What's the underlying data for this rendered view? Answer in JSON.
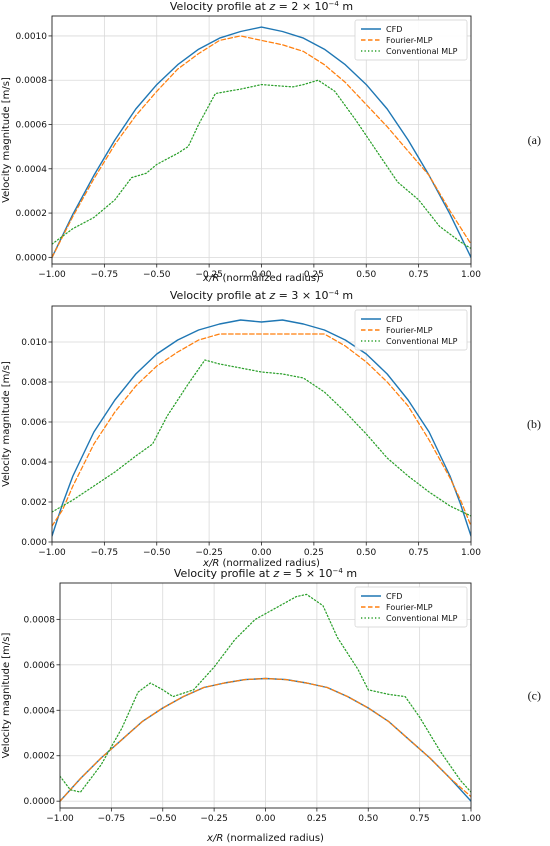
{
  "chart_data": [
    {
      "type": "line",
      "panel_id": "(a)",
      "title_prefix": "Velocity profile at ",
      "title_z": "z",
      "title_mid": " = 2 × 10",
      "title_exp": "−4",
      "title_unit": " m",
      "xlabel_italic": "x/R",
      "xlabel_rest": " (normalized radius)",
      "ylabel": "Velocity magnitude [m/s]",
      "xlim": [
        -1.0,
        1.0
      ],
      "ylim": [
        -3e-05,
        0.00109
      ],
      "x_ticks": [
        -1.0,
        -0.75,
        -0.5,
        -0.25,
        0.0,
        0.25,
        0.5,
        0.75,
        1.0
      ],
      "x_tick_labels": [
        "−1.00",
        "−0.75",
        "−0.50",
        "−0.25",
        "0.00",
        "0.25",
        "0.50",
        "0.75",
        "1.00"
      ],
      "y_ticks": [
        0.0,
        0.0002,
        0.0004,
        0.0006,
        0.0008,
        0.001
      ],
      "y_tick_labels": [
        "0.0000",
        "0.0002",
        "0.0004",
        "0.0006",
        "0.0008",
        "0.0010"
      ],
      "grid": true,
      "legend_position": "top-right",
      "series": [
        {
          "name": "CFD",
          "color": "#1f77b4",
          "style": "solid",
          "x": [
            -1.0,
            -0.9,
            -0.8,
            -0.7,
            -0.6,
            -0.5,
            -0.4,
            -0.3,
            -0.2,
            -0.1,
            0.0,
            0.1,
            0.2,
            0.3,
            0.4,
            0.5,
            0.6,
            0.7,
            0.8,
            0.9,
            1.0
          ],
          "y": [
            0.0,
            0.000195,
            0.00037,
            0.00053,
            0.00067,
            0.00078,
            0.00087,
            0.00094,
            0.00099,
            0.00102,
            0.00104,
            0.00102,
            0.00099,
            0.00094,
            0.00087,
            0.00078,
            0.00067,
            0.00053,
            0.00037,
            0.000195,
            0.0
          ]
        },
        {
          "name": "Fourier-MLP",
          "color": "#ff7f0e",
          "style": "dashed",
          "x": [
            -1.0,
            -0.9,
            -0.8,
            -0.7,
            -0.6,
            -0.5,
            -0.4,
            -0.3,
            -0.2,
            -0.1,
            0.0,
            0.1,
            0.2,
            0.3,
            0.4,
            0.5,
            0.6,
            0.7,
            0.8,
            0.9,
            1.0
          ],
          "y": [
            0.0,
            0.000185,
            0.000355,
            0.00051,
            0.00064,
            0.00075,
            0.00085,
            0.00092,
            0.00098,
            0.001,
            0.00098,
            0.00096,
            0.00093,
            0.00087,
            0.00079,
            0.00069,
            0.00059,
            0.00048,
            0.00037,
            0.00021,
            6e-05
          ]
        },
        {
          "name": "Conventional MLP",
          "color": "#2ca02c",
          "style": "dotted",
          "x": [
            -1.0,
            -0.9,
            -0.8,
            -0.7,
            -0.62,
            -0.55,
            -0.5,
            -0.4,
            -0.35,
            -0.3,
            -0.22,
            -0.1,
            0.0,
            0.15,
            0.2,
            0.27,
            0.35,
            0.45,
            0.55,
            0.65,
            0.75,
            0.85,
            0.95,
            1.0
          ],
          "y": [
            6e-05,
            0.00013,
            0.00018,
            0.00026,
            0.00036,
            0.00038,
            0.00042,
            0.00047,
            0.0005,
            0.0006,
            0.00074,
            0.00076,
            0.00078,
            0.00077,
            0.00078,
            0.0008,
            0.00075,
            0.00062,
            0.00048,
            0.00034,
            0.00026,
            0.00014,
            7e-05,
            4e-05
          ]
        }
      ]
    },
    {
      "type": "line",
      "panel_id": "(b)",
      "title_prefix": "Velocity profile at ",
      "title_z": "z",
      "title_mid": " = 3 × 10",
      "title_exp": "−4",
      "title_unit": " m",
      "xlabel_italic": "x/R",
      "xlabel_rest": " (normalized radius)",
      "ylabel": "Velocity magnitude [m/s]",
      "xlim": [
        -1.0,
        1.0
      ],
      "ylim": [
        0.0,
        0.0118
      ],
      "x_ticks": [
        -1.0,
        -0.75,
        -0.5,
        -0.25,
        0.0,
        0.25,
        0.5,
        0.75,
        1.0
      ],
      "x_tick_labels": [
        "−1.00",
        "−0.75",
        "−0.50",
        "−0.25",
        "0.00",
        "0.25",
        "0.50",
        "0.75",
        "1.00"
      ],
      "y_ticks": [
        0.0,
        0.002,
        0.004,
        0.006,
        0.008,
        0.01
      ],
      "y_tick_labels": [
        "0.000",
        "0.002",
        "0.004",
        "0.006",
        "0.008",
        "0.010"
      ],
      "grid": true,
      "legend_position": "top-right",
      "series": [
        {
          "name": "CFD",
          "color": "#1f77b4",
          "style": "solid",
          "x": [
            -1.0,
            -0.95,
            -0.9,
            -0.8,
            -0.7,
            -0.6,
            -0.5,
            -0.4,
            -0.3,
            -0.2,
            -0.1,
            0.0,
            0.1,
            0.2,
            0.3,
            0.4,
            0.5,
            0.6,
            0.7,
            0.8,
            0.9,
            0.95,
            1.0
          ],
          "y": [
            0.0003,
            0.0019,
            0.0033,
            0.0055,
            0.0071,
            0.0084,
            0.0094,
            0.0101,
            0.0106,
            0.0109,
            0.0111,
            0.011,
            0.0111,
            0.0109,
            0.0106,
            0.0101,
            0.0094,
            0.0084,
            0.0071,
            0.0055,
            0.0033,
            0.0019,
            0.0003
          ]
        },
        {
          "name": "Fourier-MLP",
          "color": "#ff7f0e",
          "style": "dashed",
          "x": [
            -1.0,
            -0.95,
            -0.9,
            -0.8,
            -0.7,
            -0.6,
            -0.5,
            -0.4,
            -0.3,
            -0.2,
            -0.1,
            0.0,
            0.1,
            0.2,
            0.3,
            0.4,
            0.5,
            0.6,
            0.7,
            0.8,
            0.9,
            0.95,
            1.0
          ],
          "y": [
            0.0008,
            0.0016,
            0.0028,
            0.0049,
            0.0065,
            0.0078,
            0.0088,
            0.0095,
            0.0101,
            0.0104,
            0.0104,
            0.0104,
            0.0104,
            0.0104,
            0.0104,
            0.0098,
            0.009,
            0.008,
            0.0068,
            0.0051,
            0.0032,
            0.0021,
            0.0008
          ]
        },
        {
          "name": "Conventional MLP",
          "color": "#2ca02c",
          "style": "dotted",
          "x": [
            -1.0,
            -0.9,
            -0.8,
            -0.7,
            -0.6,
            -0.52,
            -0.45,
            -0.35,
            -0.27,
            -0.2,
            -0.1,
            0.0,
            0.1,
            0.2,
            0.3,
            0.4,
            0.5,
            0.6,
            0.7,
            0.8,
            0.9,
            1.0
          ],
          "y": [
            0.0015,
            0.0021,
            0.0028,
            0.0035,
            0.0043,
            0.0049,
            0.0063,
            0.0079,
            0.0091,
            0.0089,
            0.0087,
            0.0085,
            0.0084,
            0.0082,
            0.0075,
            0.0065,
            0.0054,
            0.0042,
            0.0033,
            0.0025,
            0.0018,
            0.0013
          ]
        }
      ]
    },
    {
      "type": "line",
      "panel_id": "(c)",
      "title_prefix": "Velocity profile at ",
      "title_z": "z",
      "title_mid": " = 5 × 10",
      "title_exp": "−4",
      "title_unit": " m",
      "xlabel_italic": "x/R",
      "xlabel_rest": " (normalized radius)",
      "ylabel": "Velocity magnitude [m/s]",
      "xlim": [
        -1.0,
        1.0
      ],
      "ylim": [
        -3e-05,
        0.00096
      ],
      "x_ticks": [
        -1.0,
        -0.75,
        -0.5,
        -0.25,
        0.0,
        0.25,
        0.5,
        0.75,
        1.0
      ],
      "x_tick_labels": [
        "−1.00",
        "−0.75",
        "−0.50",
        "−0.25",
        "0.00",
        "0.25",
        "0.50",
        "0.75",
        "1.00"
      ],
      "y_ticks": [
        0.0,
        0.0002,
        0.0004,
        0.0006,
        0.0008
      ],
      "y_tick_labels": [
        "0.0000",
        "0.0002",
        "0.0004",
        "0.0006",
        "0.0008"
      ],
      "grid": true,
      "legend_position": "top-right",
      "series": [
        {
          "name": "CFD",
          "color": "#1f77b4",
          "style": "solid",
          "x": [
            -1.0,
            -0.9,
            -0.8,
            -0.7,
            -0.6,
            -0.5,
            -0.4,
            -0.3,
            -0.2,
            -0.1,
            0.0,
            0.1,
            0.2,
            0.3,
            0.4,
            0.5,
            0.6,
            0.7,
            0.8,
            0.9,
            1.0
          ],
          "y": [
            0.0,
            0.0001,
            0.00019,
            0.00027,
            0.00035,
            0.00041,
            0.00046,
            0.0005,
            0.00052,
            0.000535,
            0.00054,
            0.000535,
            0.00052,
            0.0005,
            0.00046,
            0.00041,
            0.00035,
            0.00027,
            0.00019,
            0.0001,
            0.0
          ]
        },
        {
          "name": "Fourier-MLP",
          "color": "#ff7f0e",
          "style": "dashed",
          "x": [
            -1.0,
            -0.9,
            -0.8,
            -0.7,
            -0.6,
            -0.5,
            -0.4,
            -0.3,
            -0.2,
            -0.1,
            0.0,
            0.1,
            0.2,
            0.3,
            0.4,
            0.5,
            0.6,
            0.7,
            0.8,
            0.9,
            1.0
          ],
          "y": [
            0.0,
            0.0001,
            0.00019,
            0.00027,
            0.00035,
            0.00041,
            0.00046,
            0.0005,
            0.00052,
            0.000535,
            0.00054,
            0.000535,
            0.00052,
            0.0005,
            0.00046,
            0.00041,
            0.00035,
            0.00027,
            0.00019,
            0.0001,
            2e-05
          ]
        },
        {
          "name": "Conventional MLP",
          "color": "#2ca02c",
          "style": "dotted",
          "x": [
            -1.0,
            -0.95,
            -0.9,
            -0.8,
            -0.7,
            -0.62,
            -0.56,
            -0.5,
            -0.45,
            -0.35,
            -0.25,
            -0.15,
            -0.05,
            0.05,
            0.15,
            0.2,
            0.28,
            0.35,
            0.45,
            0.5,
            0.6,
            0.68,
            0.75,
            0.85,
            0.95,
            1.0
          ],
          "y": [
            0.00011,
            5e-05,
            4e-05,
            0.00016,
            0.00032,
            0.00048,
            0.00052,
            0.00049,
            0.00046,
            0.00049,
            0.00059,
            0.00071,
            0.0008,
            0.00085,
            0.0009,
            0.00091,
            0.00086,
            0.00072,
            0.00058,
            0.00049,
            0.00047,
            0.00046,
            0.00037,
            0.00022,
            9e-05,
            4e-05
          ]
        }
      ]
    }
  ]
}
